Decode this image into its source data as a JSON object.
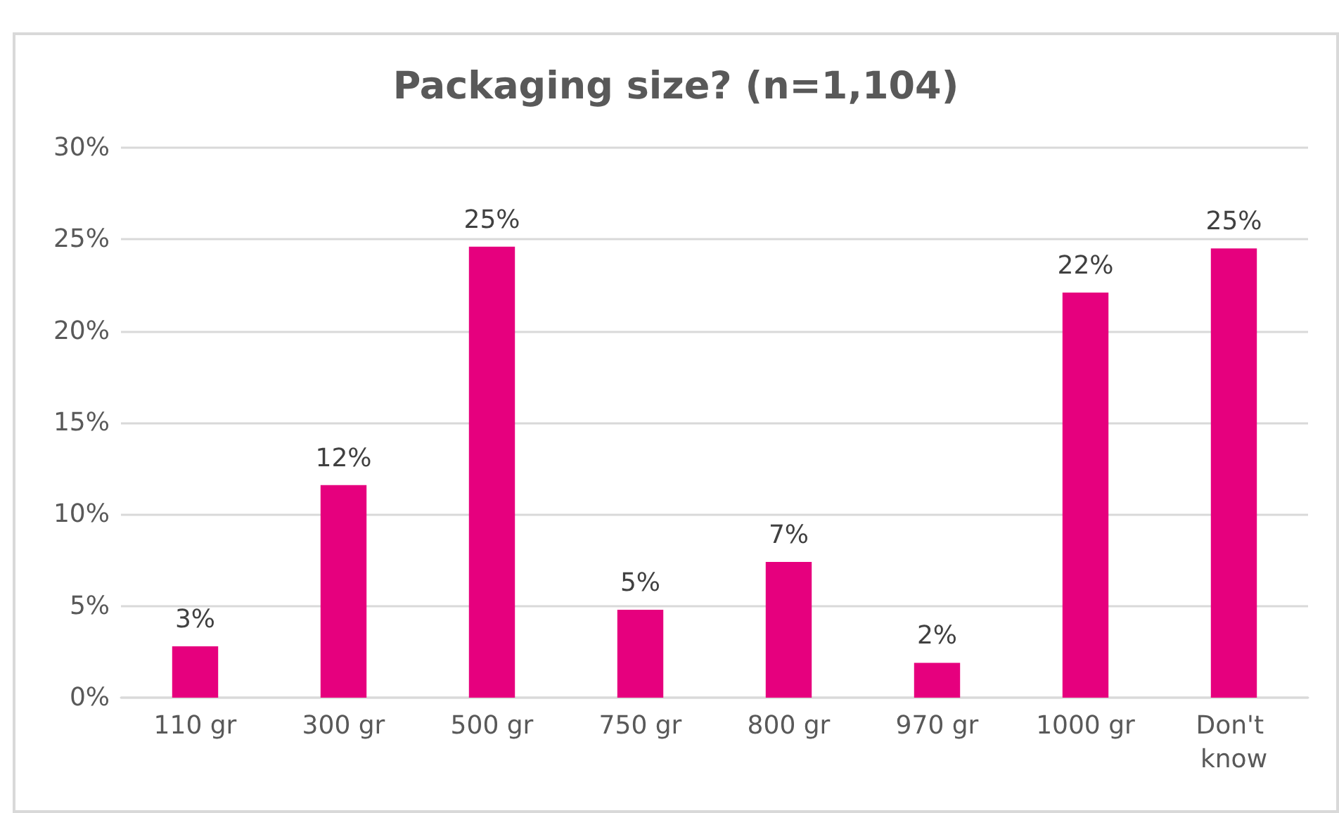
{
  "chart_data": {
    "type": "bar",
    "title": "Packaging size? (n=1,104)",
    "categories": [
      "110 gr",
      "300 gr",
      "500 gr",
      "750 gr",
      "800 gr",
      "970 gr",
      "1000 gr",
      "Don't know"
    ],
    "values": [
      2.8,
      11.6,
      24.6,
      4.8,
      7.4,
      1.9,
      22.1,
      24.5
    ],
    "value_labels": [
      "3%",
      "12%",
      "25%",
      "5%",
      "7%",
      "2%",
      "22%",
      "25%"
    ],
    "color": "#e6007e",
    "ylim": [
      0,
      30
    ],
    "yticks": [
      {
        "value": 0,
        "label": "0%"
      },
      {
        "value": 5,
        "label": "5%"
      },
      {
        "value": 10,
        "label": "10%"
      },
      {
        "value": 15,
        "label": "15%"
      },
      {
        "value": 20,
        "label": "20%"
      },
      {
        "value": 25,
        "label": "25%"
      },
      {
        "value": 30,
        "label": "30%"
      }
    ],
    "grid": "y"
  }
}
